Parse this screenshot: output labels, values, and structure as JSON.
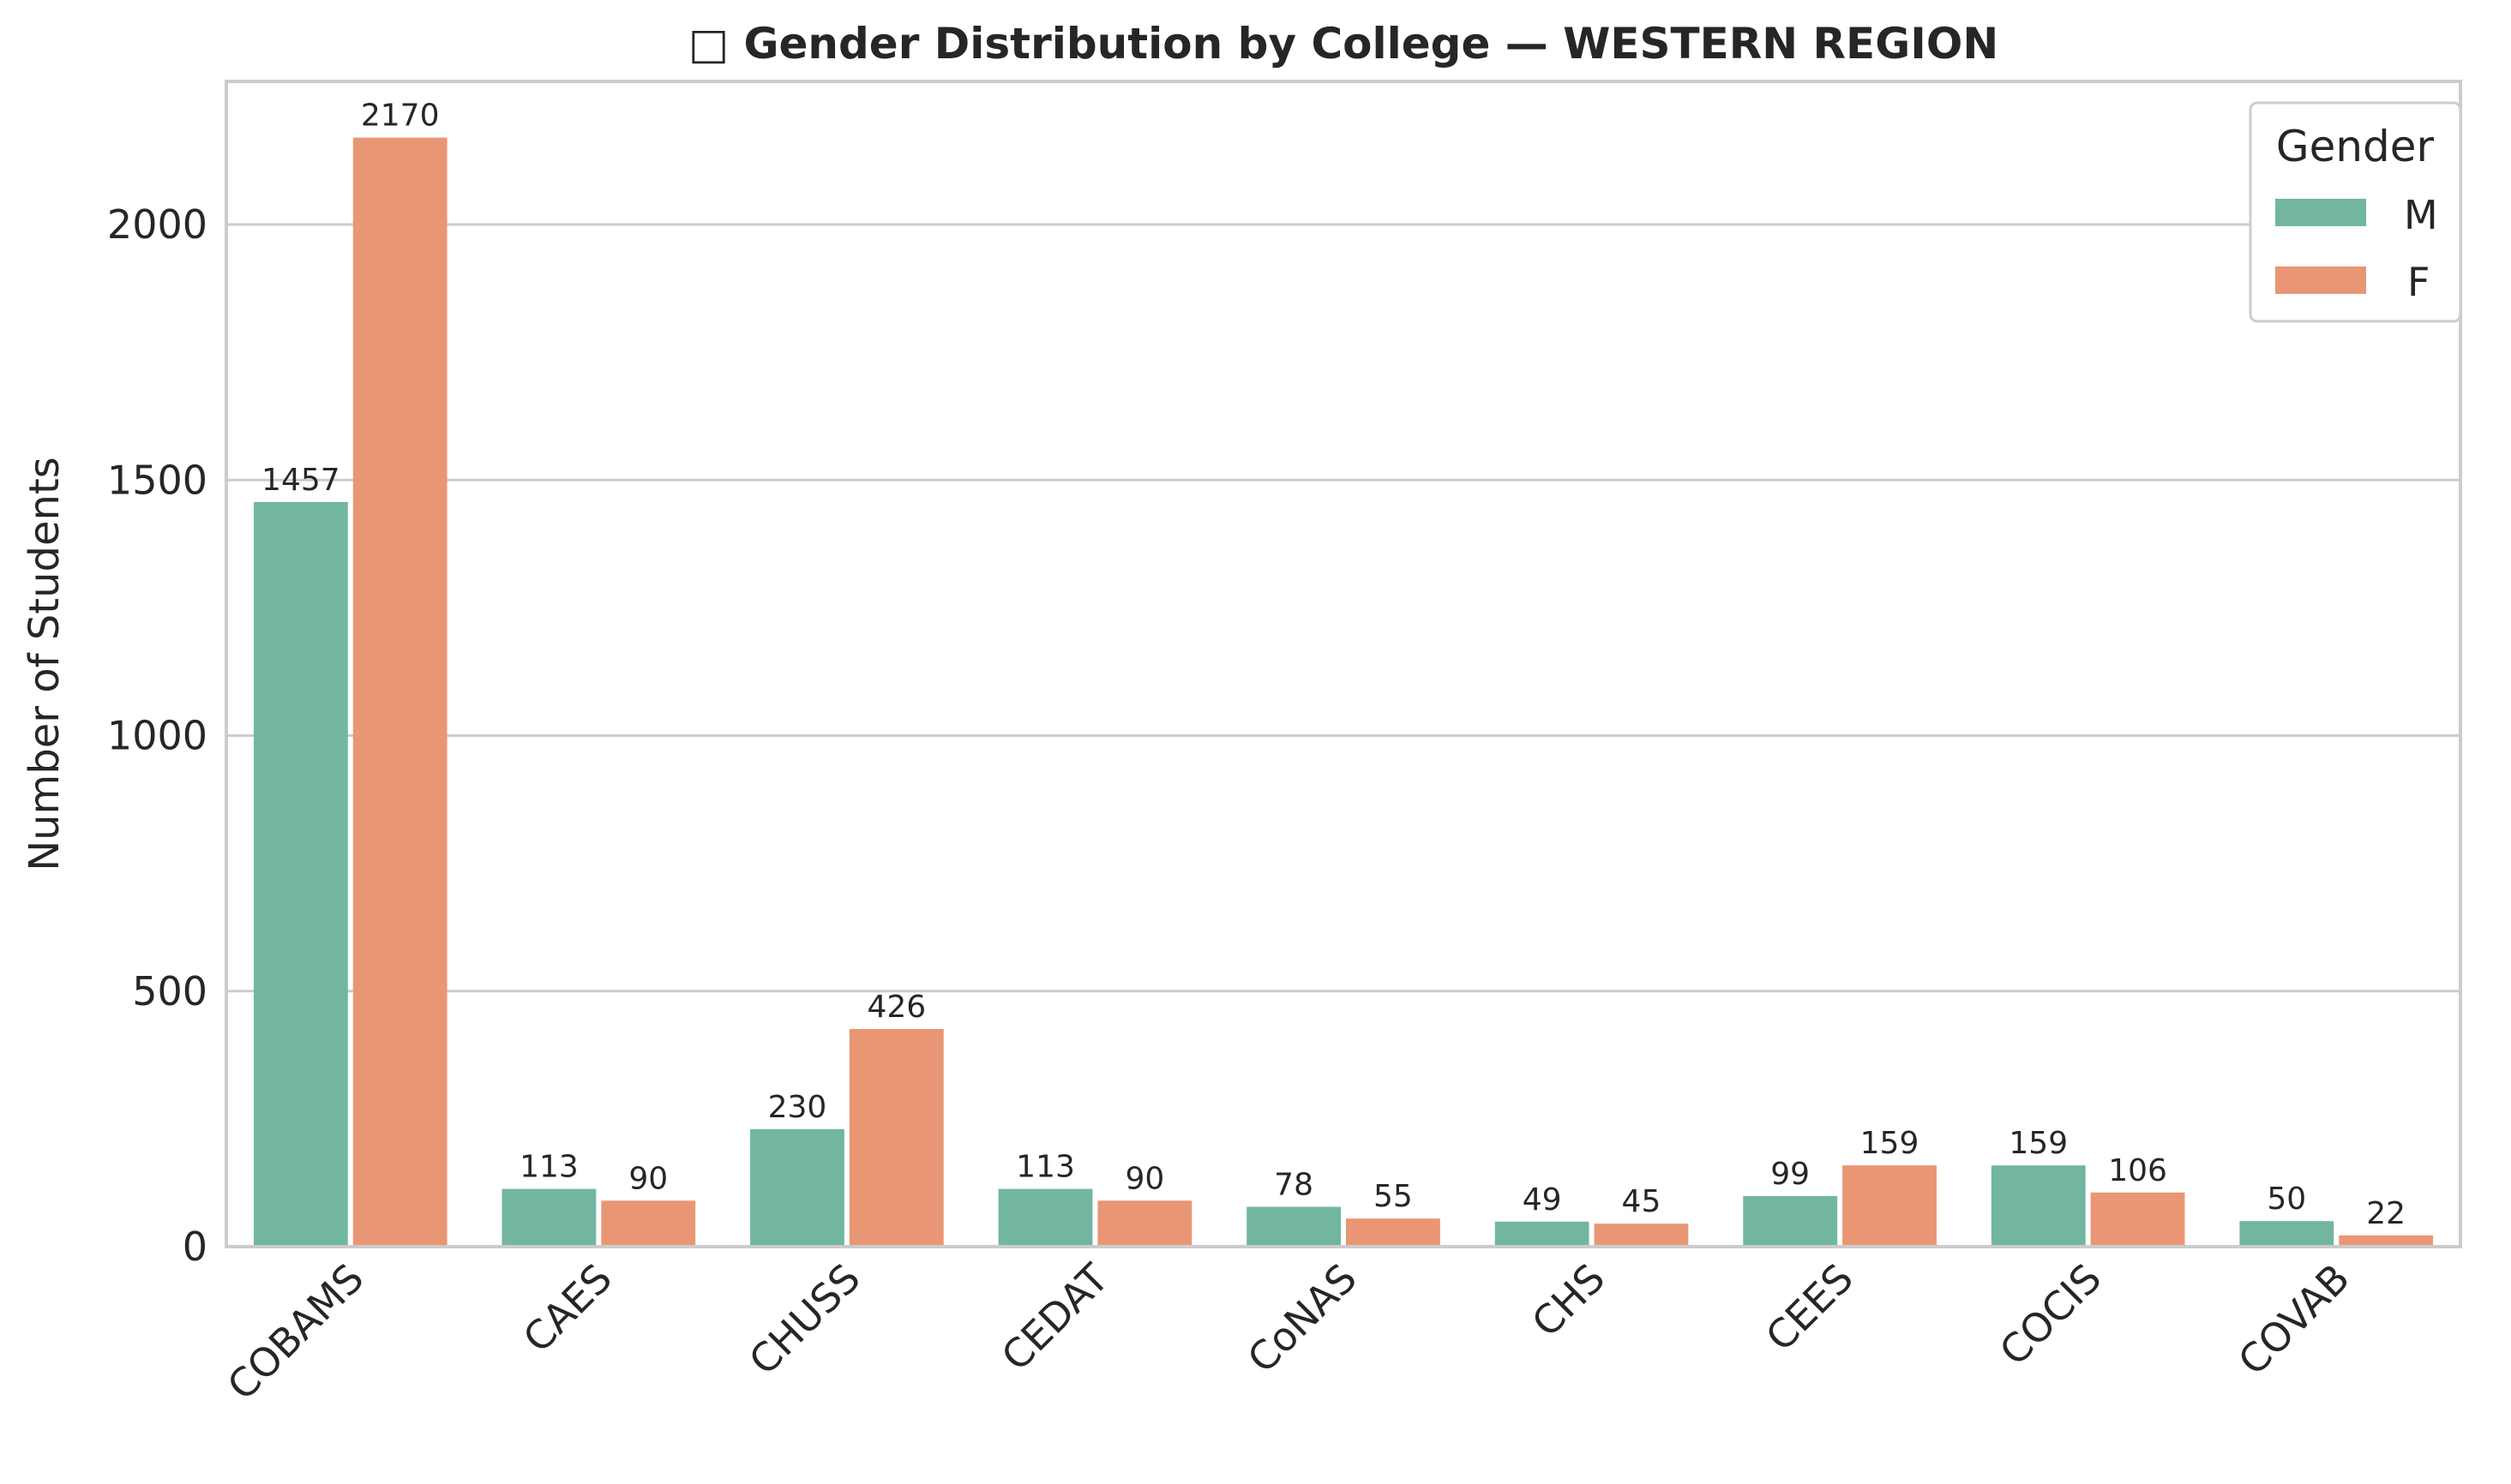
{
  "chart_data": {
    "type": "bar",
    "title": "□ Gender Distribution by College — WESTERN REGION",
    "xlabel": "",
    "ylabel": "Number of Students",
    "categories": [
      "COBAMS",
      "CAES",
      "CHUSS",
      "CEDAT",
      "CoNAS",
      "CHS",
      "CEES",
      "COCIS",
      "COVAB"
    ],
    "series": [
      {
        "name": "M",
        "color": "#72b6a1",
        "values": [
          1457,
          113,
          230,
          113,
          78,
          49,
          99,
          159,
          50
        ]
      },
      {
        "name": "F",
        "color": "#e99675",
        "values": [
          2170,
          90,
          426,
          90,
          55,
          45,
          159,
          106,
          22
        ]
      }
    ],
    "ylim": [
      0,
      2280
    ],
    "yticks": [
      0,
      500,
      1000,
      1500,
      2000
    ],
    "grid": true,
    "legend": {
      "title": "Gender",
      "placement": "top-right"
    }
  }
}
